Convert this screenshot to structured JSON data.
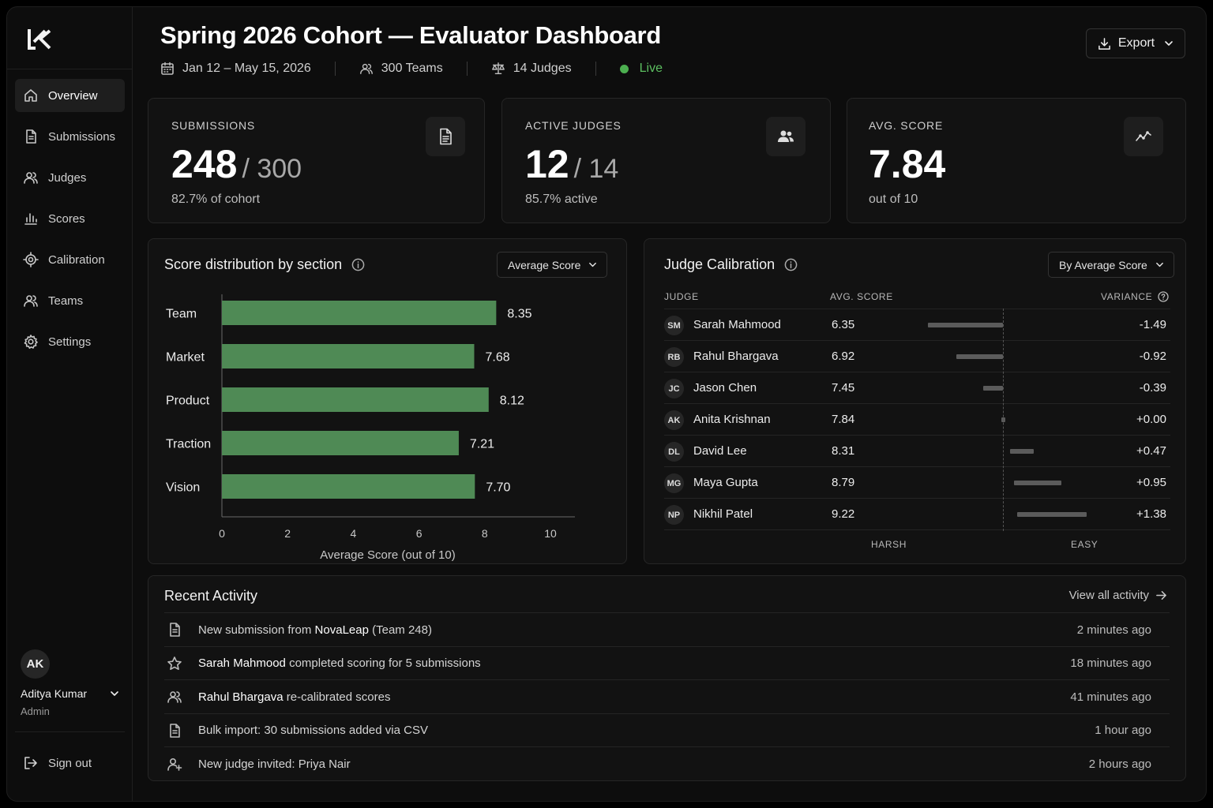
{
  "header": {
    "title": "Spring 2026 Cohort — Evaluator Dashboard",
    "date_range": "Jan 12 – May 15, 2026",
    "teams": "300 Teams",
    "judges": "14 Judges",
    "status": "Live",
    "status_color": "#4caf50",
    "export_label": "Export"
  },
  "sidebar": {
    "items": [
      {
        "label": "Overview",
        "icon": "home-icon"
      },
      {
        "label": "Submissions",
        "icon": "file-icon"
      },
      {
        "label": "Judges",
        "icon": "users-icon"
      },
      {
        "label": "Scores",
        "icon": "bar-chart-icon"
      },
      {
        "label": "Calibration",
        "icon": "target-icon"
      },
      {
        "label": "Teams",
        "icon": "team-icon"
      },
      {
        "label": "Settings",
        "icon": "gear-icon"
      }
    ],
    "active": "Overview",
    "user": {
      "initials": "AK",
      "name": "Aditya Kumar",
      "role": "Admin"
    },
    "signout_label": "Sign out"
  },
  "stats": {
    "submissions": {
      "label": "SUBMISSIONS",
      "value": "248",
      "total": "/ 300",
      "note": "82.7% of cohort"
    },
    "judges": {
      "label": "ACTIVE JUDGES",
      "value": "12",
      "total": "/ 14",
      "note": "85.7% active"
    },
    "score": {
      "label": "AVG. SCORE",
      "value": "7.84",
      "note": "out of 10"
    }
  },
  "distribution": {
    "title": "Score distribution by section",
    "dropdown": "Average Score"
  },
  "chart_data": {
    "type": "bar",
    "orientation": "horizontal",
    "categories": [
      "Team",
      "Market",
      "Product",
      "Traction",
      "Vision"
    ],
    "values": [
      8.35,
      7.68,
      8.12,
      7.21,
      7.7
    ],
    "value_labels": [
      "8.35",
      "7.68",
      "8.12",
      "7.21",
      "7.70"
    ],
    "xlabel": "Average Score (out of 10)",
    "xlim": [
      0,
      10
    ],
    "xticks": [
      "0",
      "2",
      "4",
      "6",
      "8",
      "10"
    ],
    "bar_color": "#4f8a55",
    "grid": false
  },
  "calibration": {
    "title": "Judge Calibration",
    "dropdown": "By Average Score",
    "col_judge": "JUDGE",
    "col_score": "AVG. SCORE",
    "col_variance": "VARIANCE",
    "axis_left": "HARSH",
    "axis_right": "EASY",
    "rows": [
      {
        "initials": "SM",
        "name": "Sarah Mahmood",
        "score": "6.35",
        "variance": -1.49,
        "variance_label": "-1.49"
      },
      {
        "initials": "RB",
        "name": "Rahul Bhargava",
        "score": "6.92",
        "variance": -0.92,
        "variance_label": "-0.92"
      },
      {
        "initials": "JC",
        "name": "Jason Chen",
        "score": "7.45",
        "variance": -0.39,
        "variance_label": "-0.39"
      },
      {
        "initials": "AK",
        "name": "Anita Krishnan",
        "score": "7.84",
        "variance": 0.0,
        "variance_label": "+0.00"
      },
      {
        "initials": "DL",
        "name": "David Lee",
        "score": "8.31",
        "variance": 0.47,
        "variance_label": "+0.47"
      },
      {
        "initials": "MG",
        "name": "Maya Gupta",
        "score": "8.79",
        "variance": 0.95,
        "variance_label": "+0.95"
      },
      {
        "initials": "NP",
        "name": "Nikhil Patel",
        "score": "9.22",
        "variance": 1.38,
        "variance_label": "+1.38"
      }
    ]
  },
  "activity": {
    "title": "Recent Activity",
    "view_all": "View all activity",
    "items": [
      {
        "icon": "file-icon",
        "pre": "New submission from ",
        "strong": "NovaLeap",
        "post": " (Team 248)",
        "time": "2 minutes ago"
      },
      {
        "icon": "star-icon",
        "pre": "",
        "strong": "Sarah Mahmood",
        "post": " completed scoring for 5 submissions",
        "time": "18 minutes ago"
      },
      {
        "icon": "users-icon",
        "pre": "",
        "strong": "Rahul Bhargava",
        "post": " re-calibrated scores",
        "time": "41 minutes ago"
      },
      {
        "icon": "file-icon",
        "pre": "Bulk import: 30 submissions added via CSV",
        "strong": "",
        "post": "",
        "time": "1 hour ago"
      },
      {
        "icon": "user-plus-icon",
        "pre": "New judge invited: Priya Nair",
        "strong": "",
        "post": "",
        "time": "2 hours ago"
      }
    ]
  }
}
